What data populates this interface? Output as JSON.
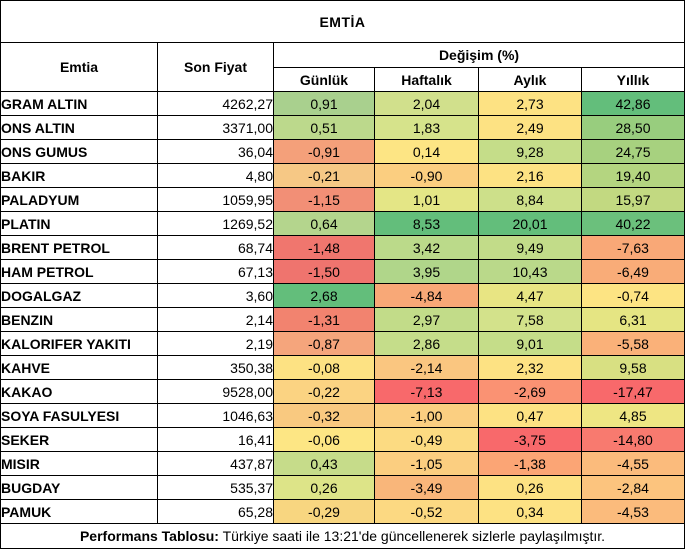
{
  "title": "EMTİA",
  "headers": {
    "commodity": "Emtia",
    "price": "Son Fiyat",
    "change_group": "Değişim (%)",
    "daily": "Günlük",
    "weekly": "Haftalık",
    "monthly": "Aylık",
    "yearly": "Yıllık"
  },
  "rows": [
    {
      "name": "GRAM ALTIN",
      "price": "4262,27",
      "daily": "0,91",
      "weekly": "2,04",
      "monthly": "2,73",
      "yearly": "42,86"
    },
    {
      "name": "ONS ALTIN",
      "price": "3371,00",
      "daily": "0,51",
      "weekly": "1,83",
      "monthly": "2,49",
      "yearly": "28,50"
    },
    {
      "name": "ONS GUMUS",
      "price": "36,04",
      "daily": "-0,91",
      "weekly": "0,14",
      "monthly": "9,28",
      "yearly": "24,75"
    },
    {
      "name": "BAKIR",
      "price": "4,80",
      "daily": "-0,21",
      "weekly": "-0,90",
      "monthly": "2,16",
      "yearly": "19,40"
    },
    {
      "name": "PALADYUM",
      "price": "1059,95",
      "daily": "-1,15",
      "weekly": "1,01",
      "monthly": "8,84",
      "yearly": "15,97"
    },
    {
      "name": "PLATIN",
      "price": "1269,52",
      "daily": "0,64",
      "weekly": "8,53",
      "monthly": "20,01",
      "yearly": "40,22"
    },
    {
      "name": "BRENT PETROL",
      "price": "68,74",
      "daily": "-1,48",
      "weekly": "3,42",
      "monthly": "9,49",
      "yearly": "-7,63"
    },
    {
      "name": "HAM PETROL",
      "price": "67,13",
      "daily": "-1,50",
      "weekly": "3,95",
      "monthly": "10,43",
      "yearly": "-6,49"
    },
    {
      "name": "DOGALGAZ",
      "price": "3,60",
      "daily": "2,68",
      "weekly": "-4,84",
      "monthly": "4,47",
      "yearly": "-0,74"
    },
    {
      "name": "BENZIN",
      "price": "2,14",
      "daily": "-1,31",
      "weekly": "2,97",
      "monthly": "7,58",
      "yearly": "6,31"
    },
    {
      "name": "KALORIFER YAKITI",
      "price": "2,19",
      "daily": "-0,87",
      "weekly": "2,86",
      "monthly": "9,01",
      "yearly": "-5,58"
    },
    {
      "name": "KAHVE",
      "price": "350,38",
      "daily": "-0,08",
      "weekly": "-2,14",
      "monthly": "2,32",
      "yearly": "9,58"
    },
    {
      "name": "KAKAO",
      "price": "9528,00",
      "daily": "-0,22",
      "weekly": "-7,13",
      "monthly": "-2,69",
      "yearly": "-17,47"
    },
    {
      "name": "SOYA FASULYESI",
      "price": "1046,63",
      "daily": "-0,32",
      "weekly": "-1,00",
      "monthly": "0,47",
      "yearly": "4,85"
    },
    {
      "name": "SEKER",
      "price": "16,41",
      "daily": "-0,06",
      "weekly": "-0,49",
      "monthly": "-3,75",
      "yearly": "-14,80"
    },
    {
      "name": "MISIR",
      "price": "437,87",
      "daily": "0,43",
      "weekly": "-1,05",
      "monthly": "-1,38",
      "yearly": "-4,55"
    },
    {
      "name": "BUGDAY",
      "price": "535,37",
      "daily": "0,26",
      "weekly": "-3,49",
      "monthly": "0,26",
      "yearly": "-2,84"
    },
    {
      "name": "PAMUK",
      "price": "65,28",
      "daily": "-0,29",
      "weekly": "-0,52",
      "monthly": "0,34",
      "yearly": "-4,53"
    }
  ],
  "colors": {
    "daily": [
      "#a9d08e",
      "#bcd98c",
      "#f4a07a",
      "#f6c885",
      "#f28f76",
      "#b4d58d",
      "#f0766e",
      "#ef746e",
      "#63be7b",
      "#f2836f",
      "#f5a57c",
      "#fde283",
      "#fbd382",
      "#f9c980",
      "#fde684",
      "#c6dc8a",
      "#dde488",
      "#f8d680"
    ],
    "weekly": [
      "#d1e08c",
      "#d6e38b",
      "#fde584",
      "#fbce80",
      "#e4e686",
      "#63be7b",
      "#bbda8a",
      "#b0d68a",
      "#f8a877",
      "#c2dc89",
      "#c5dd8a",
      "#fac680",
      "#f8696b",
      "#fbcf81",
      "#fcdb82",
      "#fbce80",
      "#f9b67a",
      "#fcd982"
    ],
    "monthly": [
      "#fde283",
      "#fde283",
      "#c5dd89",
      "#fde283",
      "#cde08a",
      "#63be7b",
      "#c2dc89",
      "#bad98a",
      "#e8e583",
      "#d3e28b",
      "#c5dd89",
      "#fde283",
      "#fa9273",
      "#fde283",
      "#f8696b",
      "#fba575",
      "#fde283",
      "#fde283"
    ],
    "yearly": [
      "#63be7b",
      "#98cd7e",
      "#a7d17f",
      "#b4d580",
      "#c2d981",
      "#6bc07c",
      "#f9a877",
      "#f9ac78",
      "#fde483",
      "#e5e583",
      "#fab179",
      "#d8e082",
      "#f8696b",
      "#eee683",
      "#f87a6f",
      "#fbbb7c",
      "#fcc47e",
      "#fbbb7c"
    ]
  },
  "footer": {
    "label": "Performans Tablosu:",
    "text": "Türkiye saati ile 13:21'de güncellenerek sizlerle paylaşılmıştır."
  }
}
